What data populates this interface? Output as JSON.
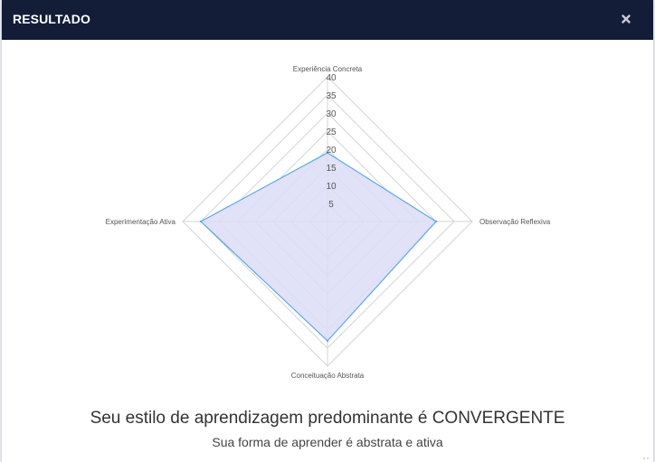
{
  "modal": {
    "title": "RESULTADO",
    "close_icon": "close-icon"
  },
  "chart_data": {
    "type": "radar",
    "axes": [
      "Experiência Concreta",
      "Observação Reflexiva",
      "Conceituação Abstrata",
      "Experimentação Ativa"
    ],
    "ticks": [
      5,
      10,
      15,
      20,
      25,
      30,
      35,
      40
    ],
    "range": [
      0,
      40
    ],
    "grid": true,
    "series": [
      {
        "values": [
          19,
          30,
          33,
          35
        ],
        "fill_color": "#dcdcf7",
        "line_color": "#5aa9e6"
      }
    ]
  },
  "result": {
    "headline": "Seu estilo de aprendizagem predominante é CONVERGENTE",
    "subtitle": "Sua forma de aprender é abstrata e ativa"
  },
  "colors": {
    "header_bg": "#141d38",
    "grid": "#d5d5d5"
  }
}
